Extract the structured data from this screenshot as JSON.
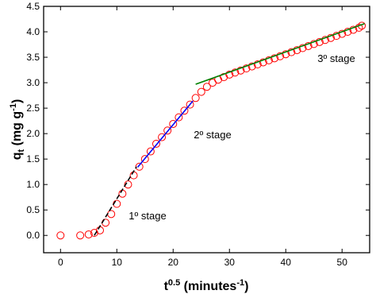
{
  "chart_data": {
    "type": "scatter",
    "ylabel": {
      "main": "q",
      "sub": "t",
      "unit": "(mg g",
      "sup": "-1",
      "close": ")"
    },
    "xlabel": {
      "main": "t",
      "sup": "0.5",
      "unit": "(minutes",
      "sup2": "-1",
      "close": ")"
    },
    "x": [
      0,
      3.5,
      5,
      6,
      7,
      8,
      9,
      10,
      11,
      12,
      13,
      14,
      15,
      16,
      17,
      18,
      19,
      20,
      21,
      22,
      23,
      24,
      25,
      26,
      27,
      28,
      29,
      30,
      31,
      32,
      33,
      34,
      35,
      36,
      37,
      38,
      39,
      40,
      41,
      42,
      43,
      44,
      45,
      46,
      47,
      48,
      49,
      50,
      51,
      52,
      53,
      53.5
    ],
    "values": [
      0,
      0,
      0.02,
      0.05,
      0.1,
      0.25,
      0.42,
      0.62,
      0.82,
      1.0,
      1.18,
      1.35,
      1.5,
      1.65,
      1.8,
      1.93,
      2.06,
      2.19,
      2.32,
      2.45,
      2.57,
      2.7,
      2.82,
      2.92,
      3.0,
      3.06,
      3.11,
      3.16,
      3.2,
      3.24,
      3.28,
      3.32,
      3.36,
      3.4,
      3.44,
      3.48,
      3.52,
      3.56,
      3.6,
      3.64,
      3.68,
      3.72,
      3.76,
      3.8,
      3.84,
      3.88,
      3.92,
      3.96,
      4.0,
      4.04,
      4.08,
      4.12
    ],
    "color": "#ff0000",
    "fit_lines": [
      {
        "color": "#000000",
        "dashed": true,
        "x": [
          6,
          13.5
        ],
        "y": [
          0,
          1.35
        ]
      },
      {
        "color": "#0000ff",
        "dashed": false,
        "x": [
          13.7,
          23.5
        ],
        "y": [
          1.34,
          2.64
        ]
      },
      {
        "color": "#008000",
        "dashed": false,
        "x": [
          24,
          54
        ],
        "y": [
          2.97,
          4.16
        ]
      }
    ],
    "annotations": [
      "1º stage",
      "2º stage",
      "3º stage"
    ],
    "xlim": [
      -3,
      54.9
    ],
    "ylim": [
      -0.34,
      4.5
    ],
    "xticks": [
      0,
      10,
      20,
      30,
      40,
      50
    ],
    "yticks": [
      {
        "value": 0,
        "label": "0.0"
      },
      {
        "value": 0.5,
        "label": "0.5"
      },
      {
        "value": 1,
        "label": "1.0"
      },
      {
        "value": 1.5,
        "label": "1.5"
      },
      {
        "value": 2,
        "label": "2.0"
      },
      {
        "value": 2.5,
        "label": "2.5"
      },
      {
        "value": 3,
        "label": "3.0"
      },
      {
        "value": 3.5,
        "label": "3.5"
      },
      {
        "value": 4,
        "label": "4.0"
      },
      {
        "value": 4.5,
        "label": "4.5"
      }
    ]
  }
}
